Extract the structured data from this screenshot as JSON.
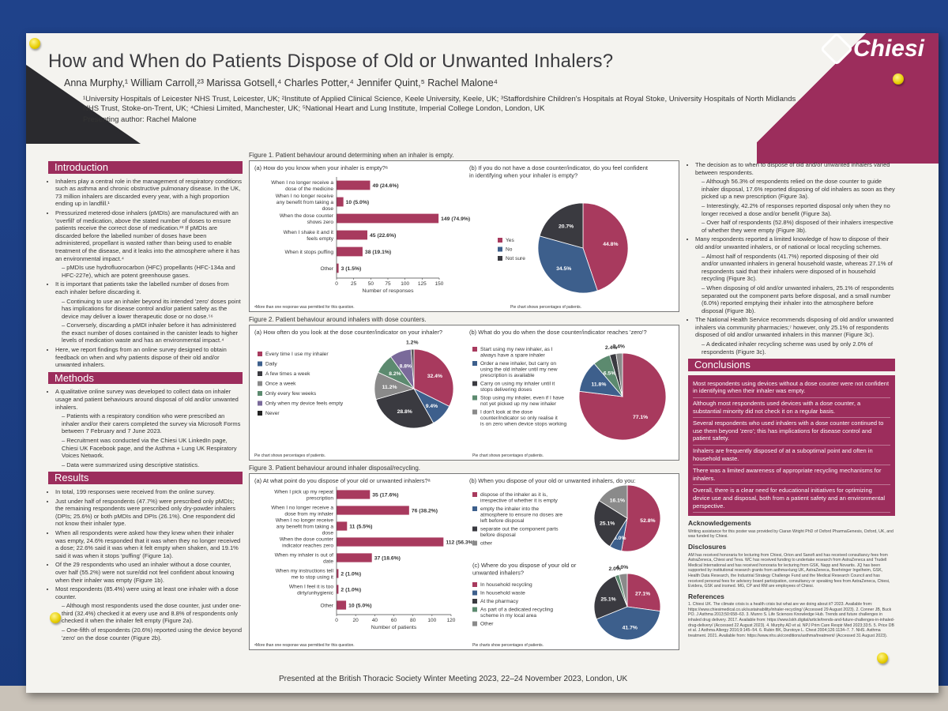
{
  "poster": {
    "title": "How and When do Patients Dispose of Old or Unwanted Inhalers?",
    "authors": "Anna Murphy,¹ William Carroll,²³ Marissa Gotsell,⁴ Charles Potter,⁴ Jennifer Quint,⁵ Rachel Malone⁴",
    "affiliations": "¹University Hospitals of Leicester NHS Trust, Leicester, UK; ²Institute of Applied Clinical Science, Keele University, Keele, UK; ³Staffordshire Children's Hospitals at Royal Stoke, University Hospitals of North Midlands NHS Trust, Stoke-on-Trent, UK; ⁴Chiesi Limited, Manchester, UK; ⁵National Heart and Lung Institute, Imperial College London, London, UK",
    "presenting": "Presenting author: Rachel Malone",
    "logo_text": "Chiesi",
    "footer": "Presented at the British Thoracic Society Winter Meeting 2023, 22–24 November 2023, London, UK"
  },
  "intro": {
    "heading": "Introduction",
    "items": [
      "Inhalers play a central role in the management of respiratory conditions such as asthma and chronic obstructive pulmonary disease. In the UK, 73 million inhalers are discarded every year, with a high proportion ending up in landfill.¹",
      "Pressurized metered-dose inhalers (pMDIs) are manufactured with an 'overfill' of medication, above the stated number of doses to ensure patients receive the correct dose of medication.²³ If pMDIs are discarded before the labelled number of doses have been administered, propellant is wasted rather than being used to enable treatment of the disease, and it leaks into the atmosphere where it has an environmental impact.⁴",
      "– pMDIs use hydrofluorocarbon (HFC) propellants (HFC-134a and HFC-227e), which are potent greenhouse gases.",
      "It is important that patients take the labelled number of doses from each inhaler before discarding it.",
      "– Continuing to use an inhaler beyond its intended 'zero' doses point has implications for disease control and/or patient safety as the device may deliver a lower therapeutic dose or no dose.⁵⁶",
      "– Conversely, discarding a pMDI inhaler before it has administered the exact number of doses contained in the canister leads to higher levels of medication waste and has an environmental impact.⁴",
      "Here, we report findings from an online survey designed to obtain feedback on when and why patients dispose of their old and/or unwanted inhalers."
    ]
  },
  "methods": {
    "heading": "Methods",
    "items": [
      "A qualitative online survey was developed to collect data on inhaler usage and patient behaviours around disposal of old and/or unwanted inhalers.",
      "– Patients with a respiratory condition who were prescribed an inhaler and/or their carers completed the survey via Microsoft Forms between 7 February and 7 June 2023.",
      "– Recruitment was conducted via the Chiesi UK LinkedIn page, Chiesi UK Facebook page, and the Asthma + Lung UK Respiratory Voices Network.",
      "– Data were summarized using descriptive statistics."
    ]
  },
  "results": {
    "heading": "Results",
    "items": [
      "In total, 199 responses were received from the online survey.",
      "Just under half of respondents (47.7%) were prescribed only pMDIs; the remaining respondents were prescribed only dry-powder inhalers (DPIs; 25.6%) or both pMDIs and DPIs (26.1%). One respondent did not know their inhaler type.",
      "When all respondents were asked how they knew when their inhaler was empty, 24.6% responded that it was when they no longer received a dose; 22.6% said it was when it felt empty when shaken, and 19.1% said it was when it stops 'puffing' (Figure 1a).",
      "Of the 29 respondents who used an inhaler without a dose counter, over half (55.2%) were not sure/did not feel confident about knowing when their inhaler was empty (Figure 1b).",
      "Most respondents (85.4%) were using at least one inhaler with a dose counter.",
      "– Although most respondents used the dose counter, just under one-third (32.4%) checked it at every use and 8.8% of respondents only checked it when the inhaler felt empty (Figure 2a).",
      "– One-fifth of respondents (20.6%) reported using the device beyond 'zero' on the dose counter (Figure 2b)."
    ]
  },
  "right": {
    "items": [
      "The decision as to when to dispose of old and/or unwanted inhalers varied between respondents.",
      "– Although 56.3% of respondents relied on the dose counter to guide inhaler disposal, 17.6% reported disposing of old inhalers as soon as they picked up a new prescription (Figure 3a).",
      "– Interestingly, 42.2% of responses reported disposal only when they no longer received a dose and/or benefit (Figure 3a).",
      "– Over half of respondents (52.8%) disposed of their inhalers irrespective of whether they were empty (Figure 3b).",
      "Many respondents reported a limited knowledge of how to dispose of their old and/or unwanted inhalers, or of national or local recycling schemes.",
      "– Almost half of respondents (41.7%) reported disposing of their old and/or unwanted inhalers in general household waste, whereas 27.1% of respondents said that their inhalers were disposed of in household recycling (Figure 3c).",
      "– When disposing of old and/or unwanted inhalers, 25.1% of respondents separated out the component parts before disposal, and a small number (6.0%) reported emptying their inhaler into the atmosphere before disposal (Figure 3b).",
      "The National Health Service recommends disposing of old and/or unwanted inhalers via community pharmacies;⁷ however, only 25.1% of respondents disposed of old and/or unwanted inhalers in this manner (Figure 3c).",
      "– A dedicated inhaler recycling scheme was used by only 2.0% of respondents (Figure 3c)."
    ]
  },
  "conclusions": {
    "heading": "Conclusions",
    "items": [
      "Most respondents using devices without a dose counter were not confident in identifying when their inhaler was empty.",
      "Although most respondents used devices with a dose counter, a substantial minority did not check it on a regular basis.",
      "Several respondents who used inhalers with a dose counter continued to use them beyond 'zero'; this has implications for disease control and patient safety.",
      "Inhalers are frequently disposed of at a suboptimal point and often in household waste.",
      "There was a limited awareness of appropriate recycling mechanisms for inhalers.",
      "Overall, there is a clear need for educational initiatives for optimizing device use and disposal, both from a patient safety and an environmental perspective."
    ]
  },
  "acknowledgements": {
    "heading": "Acknowledgements",
    "text": "Writing assistance for this poster was provided by Ciaran Wright PhD of Oxford PharmaGenesis, Oxford, UK, and was funded by Chiesi."
  },
  "disclosures": {
    "heading": "Disclosures",
    "text": "AM has received honoraria for lecturing from Chiesi, Orion and Sanofi and has received consultancy fees from AstraZeneca, Chiesi and Teva. WC has received funding to undertake research from AstraZeneca and Trudell Medical International and has received honoraria for lecturing from GSK, Napp and Novartis. JQ has been supported by institutional research grants from asthma+lung UK, AstraZeneca, Boehringer Ingelheim, GSK, Health Data Research, the Industrial Strategy Challenge Fund and the Medical Research Council and has received personal fees for advisory board participation, consultancy or speaking fees from AstraZeneca, Chiesi, Evidera, GSK and insmed. MG, CP and RM are employees of Chiesi."
  },
  "references": {
    "heading": "References",
    "text": "1. Chiesi UK. The climate crisis is a health crisis but what are we doing about it? 2023. Available from: https://www.chiesimedical.co.uk/sustainability/inhaler-recycling/ (Accessed 29 August 2023). 2. Conner JB, Buck PO. J Asthma 2013;50:658–63. 3. Munro S. Life Sciences Knowledge Hub. Trends and future challenges in inhaled drug delivery. 2017. Available from: https://www.lskh.digital/article/trends-and-future-challenges-in-inhaled-drug-delivery/ (Accessed 22 August 2023). 4. Murphy AD et al. NPJ Prim Care Respir Med 2023;33:5. 5. Price DB et al. J Asthma Allergy 2016;9:145–54. 6. Rubin BK, Durotoye L. Chest 2004;126:1134–7. 7. NHS. Asthma treatment. 2021. Available from: https://www.nhs.uk/conditions/asthma/treatment/ (Accessed 31 August 2023)."
  },
  "figures": {
    "fig1": {
      "caption": "Figure 1. Patient behaviour around determining when an inhaler is empty.",
      "a_title": "(a) How do you know when your inhaler is empty?ᵃ",
      "b_title": "(b) If you do not have a dose counter/indicator, do you feel confident in identifying when your inhaler is empty?",
      "a_note": "ᵃMore than one response was permitted for this question.",
      "b_note": "Pie chart shows percentages of patients.",
      "xlabel": "Number of responses"
    },
    "fig2": {
      "caption": "Figure 2. Patient behaviour around inhalers with dose counters.",
      "a_title": "(a) How often do you look at the dose counter/indicator on your inhaler?",
      "b_title": "(b) What do you do when the dose counter/indicator reaches 'zero'?",
      "a_note": "Pie chart shows percentages of patients.",
      "b_note": "Pie chart shows percentages of patients."
    },
    "fig3": {
      "caption": "Figure 3. Patient behaviour around inhaler disposal/recycling.",
      "a_title": "(a) At what point do you dispose of your old or unwanted inhalers?ᵃ",
      "b_title": "(b) When you dispose of your old or unwanted inhalers, do you:",
      "c_title": "(c) Where do you dispose of your old or unwanted inhalers?",
      "a_note": "ᵃMore than one response was permitted for this question.",
      "c_note": "Pie charts show percentages of patients.",
      "xlabel": "Number of patients"
    }
  },
  "colors": {
    "crimson": "#a83a5e",
    "blue": "#3d5f8c",
    "dark": "#3a3a40",
    "gray": "#8a8a8a",
    "green": "#5c8a6f",
    "purple": "#7a6a9a"
  },
  "chart_data": [
    {
      "id": "fig1a",
      "type": "bar",
      "orientation": "horizontal",
      "categories": [
        "When I no longer receive a dose of the medicine",
        "When I no longer receive any benefit from taking a dose",
        "When the dose counter shows zero",
        "When I shake it and it feels empty",
        "When it stops puffing",
        "Other"
      ],
      "values": [
        49,
        10,
        149,
        45,
        38,
        3
      ],
      "value_labels": [
        "49 (24.6%)",
        "10 (5.0%)",
        "149 (74.9%)",
        "45 (22.6%)",
        "38 (19.1%)",
        "3 (1.5%)"
      ],
      "xlabel": "Number of responses",
      "xlim": [
        0,
        150
      ],
      "xticks": [
        0,
        25,
        50,
        75,
        100,
        125,
        150
      ]
    },
    {
      "id": "fig1b",
      "type": "pie",
      "labels": [
        "Yes",
        "No",
        "Not sure"
      ],
      "values": [
        44.8,
        34.5,
        20.7
      ],
      "value_labels": [
        "44.8%",
        "34.5%",
        "20.7%"
      ]
    },
    {
      "id": "fig2a",
      "type": "pie",
      "labels": [
        "Every time I use my inhaler",
        "Daily",
        "A few times a week",
        "Once a week",
        "Only every few weeks",
        "Only when my device feels empty",
        "Never"
      ],
      "values": [
        32.4,
        9.4,
        28.8,
        11.2,
        8.2,
        8.8,
        1.2
      ],
      "value_labels": [
        "32.4%",
        "9.4%",
        "28.8%",
        "11.2%",
        "8.2%",
        "8.8%",
        "1.2%"
      ]
    },
    {
      "id": "fig2b",
      "type": "pie",
      "labels": [
        "Start using my new inhaler, as I always have a spare inhaler",
        "Order a new inhaler, but carry on using the old inhaler until my new prescription is available",
        "Carry on using my inhaler until it stops delivering doses",
        "Stop using my inhaler, even if I have not yet picked up my new inhaler",
        "I don't look at the dose counter/indicator so only realise it is on zero when device stops working"
      ],
      "values": [
        77.1,
        11.8,
        6.5,
        2.4,
        2.4
      ],
      "value_labels": [
        "77.1%",
        "11.8%",
        "6.5%",
        "2.4%",
        "2.4%"
      ]
    },
    {
      "id": "fig3a",
      "type": "bar",
      "orientation": "horizontal",
      "categories": [
        "When I pick up my repeat prescription",
        "When I no longer receive a dose from my inhaler",
        "When I no longer receive any benefit from taking a dose",
        "When the dose counter indicator reaches zero",
        "When my inhaler is out of date",
        "When my instructions tell me to stop using it",
        "When I feel it is too dirty/unhygienic",
        "Other"
      ],
      "values": [
        35,
        76,
        11,
        112,
        37,
        2,
        2,
        10
      ],
      "value_labels": [
        "35 (17.6%)",
        "76 (38.2%)",
        "11 (5.5%)",
        "112 (56.3%)",
        "37 (18.6%)",
        "2 (1.0%)",
        "2 (1.0%)",
        "10 (5.0%)"
      ],
      "xlabel": "Number of patients",
      "xlim": [
        0,
        120
      ],
      "xticks": [
        0,
        20,
        40,
        60,
        80,
        100,
        120
      ]
    },
    {
      "id": "fig3b",
      "type": "pie",
      "labels": [
        "dispose of the inhaler as it is, irrespective of whether it is empty",
        "empty the inhaler into the atmosphere to ensure no doses are left before disposal",
        "separate out the component parts before disposal",
        "other"
      ],
      "values": [
        52.8,
        6.0,
        25.1,
        16.1
      ],
      "value_labels": [
        "52.8%",
        "6.0%",
        "25.1%",
        "16.1%"
      ]
    },
    {
      "id": "fig3c",
      "type": "pie",
      "labels": [
        "In household recycling",
        "In household waste",
        "At the pharmacy",
        "As part of a dedicated recycling scheme in my local area",
        "Other"
      ],
      "values": [
        27.1,
        41.7,
        25.1,
        2.0,
        4.0
      ],
      "value_labels": [
        "27.1%",
        "41.7%",
        "25.1%",
        "2.0%",
        "4.0%"
      ]
    }
  ]
}
